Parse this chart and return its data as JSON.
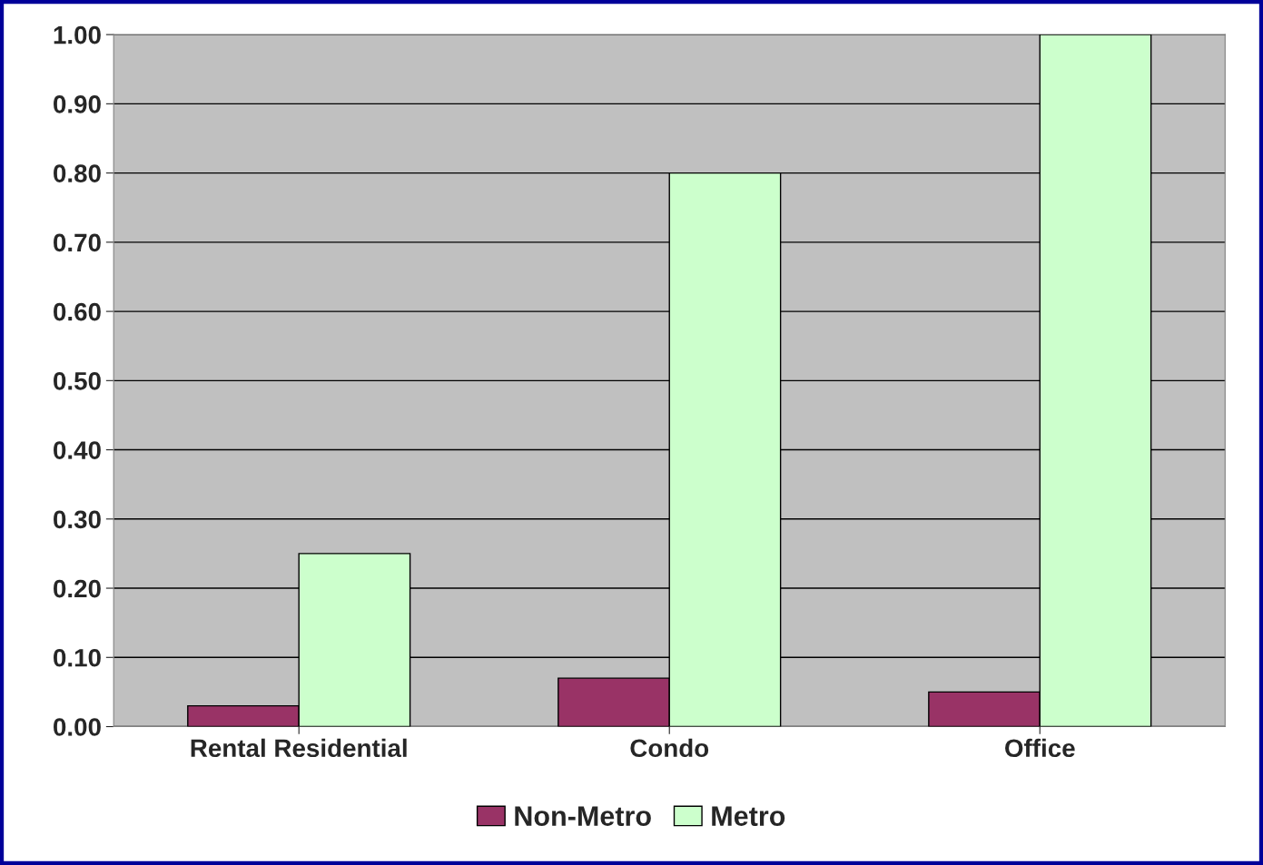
{
  "chart_data": {
    "type": "bar",
    "categories": [
      "Rental Residential",
      "Condo",
      "Office"
    ],
    "series": [
      {
        "name": "Non-Metro",
        "color": "#993366",
        "values": [
          0.03,
          0.07,
          0.05
        ]
      },
      {
        "name": "Metro",
        "color": "#ccffcc",
        "values": [
          0.25,
          0.8,
          1.0
        ]
      }
    ],
    "ylim": [
      0,
      1.0
    ],
    "yticks": [
      {
        "value": 0,
        "label": "0.00"
      },
      {
        "value": 0.1,
        "label": "0.10"
      },
      {
        "value": 0.2,
        "label": "0.20"
      },
      {
        "value": 0.3,
        "label": "0.30"
      },
      {
        "value": 0.4,
        "label": "0.40"
      },
      {
        "value": 0.5,
        "label": "0.50"
      },
      {
        "value": 0.6,
        "label": "0.60"
      },
      {
        "value": 0.7,
        "label": "0.70"
      },
      {
        "value": 0.8,
        "label": "0.80"
      },
      {
        "value": 0.9,
        "label": "0.90"
      },
      {
        "value": 1.0,
        "label": "1.00"
      }
    ],
    "grid": "y",
    "legend": "bottom"
  }
}
